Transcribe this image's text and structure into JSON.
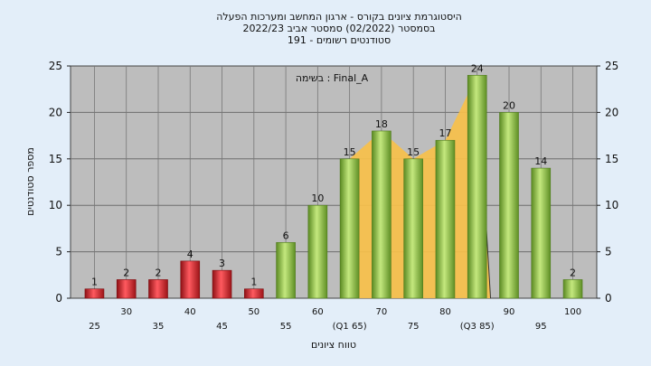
{
  "chart_data": {
    "type": "bar",
    "title_lines": [
      "היסטוגרמת ציונים בקורס - ארגון המחשב ומערכות הפעלה",
      "בסמסטר  (02/2022)  סמסטר אביב 2022/23",
      "סטודנטים רשומים - 191"
    ],
    "note": "בשימה : Final_A",
    "xlabel": "טווח ציונים",
    "ylabel": "מספר סטודנטים",
    "ylim": [
      0,
      25
    ],
    "yticks": [
      0,
      5,
      10,
      15,
      20,
      25
    ],
    "categories": [
      25,
      30,
      35,
      40,
      45,
      50,
      55,
      60,
      65,
      70,
      75,
      80,
      85,
      90,
      95,
      100
    ],
    "x_tick_labels": [
      "25",
      "30",
      "35",
      "40",
      "45",
      "50",
      "55",
      "60",
      "(Q1 65)",
      "70",
      "75",
      "80",
      "(Q3 85)",
      "90",
      "95",
      "100"
    ],
    "values": [
      1,
      2,
      2,
      4,
      3,
      1,
      6,
      10,
      15,
      18,
      15,
      17,
      24,
      20,
      14,
      2
    ],
    "fail_threshold": 55,
    "interquartile_range": [
      65,
      85
    ],
    "grid": true,
    "colors": {
      "fail": "#d9232a",
      "pass": "#8cc04a",
      "band": "#f7c04a",
      "plot_bg": "#bdbdbd",
      "page_bg": "#e3eef9"
    }
  }
}
